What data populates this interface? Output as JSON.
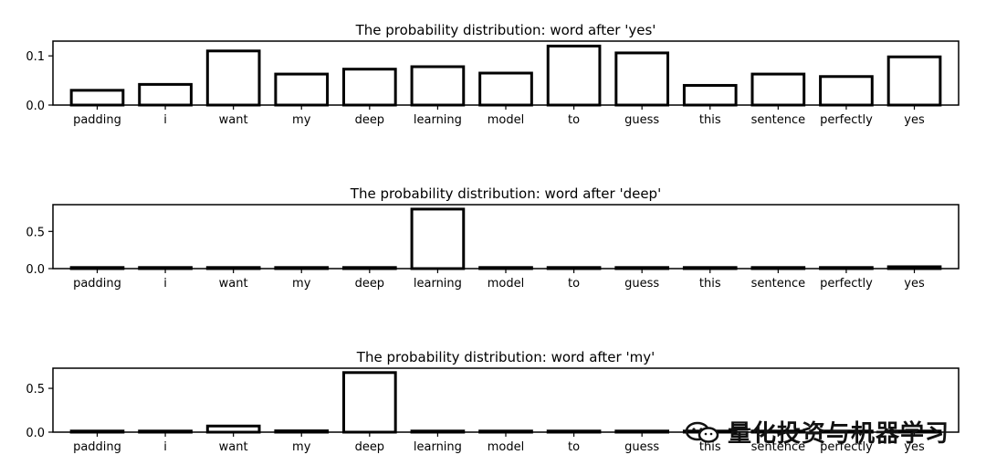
{
  "chart_data": [
    {
      "type": "bar",
      "title": "The probability distribution: word after 'yes'",
      "categories": [
        "padding",
        "i",
        "want",
        "my",
        "deep",
        "learning",
        "model",
        "to",
        "guess",
        "this",
        "sentence",
        "perfectly",
        "yes"
      ],
      "values": [
        0.03,
        0.042,
        0.11,
        0.063,
        0.073,
        0.078,
        0.065,
        0.12,
        0.106,
        0.04,
        0.063,
        0.058,
        0.098
      ],
      "yticks": [
        "0.0",
        "0.1"
      ],
      "ylim": [
        0,
        0.13
      ],
      "xlabel": "",
      "ylabel": ""
    },
    {
      "type": "bar",
      "title": "The probability distribution: word after 'deep'",
      "categories": [
        "padding",
        "i",
        "want",
        "my",
        "deep",
        "learning",
        "model",
        "to",
        "guess",
        "this",
        "sentence",
        "perfectly",
        "yes"
      ],
      "values": [
        0.0,
        0.006,
        0.005,
        0.012,
        0.0,
        0.8,
        0.005,
        0.012,
        0.006,
        0.012,
        0.0,
        0.0,
        0.025
      ],
      "yticks": [
        "0.0",
        "0.5"
      ],
      "ylim": [
        0,
        0.86
      ],
      "xlabel": "",
      "ylabel": ""
    },
    {
      "type": "bar",
      "title": "The probability distribution: word after 'my'",
      "categories": [
        "padding",
        "i",
        "want",
        "my",
        "deep",
        "learning",
        "model",
        "to",
        "guess",
        "this",
        "sentence",
        "perfectly",
        "yes"
      ],
      "values": [
        0.006,
        0.006,
        0.07,
        0.015,
        0.68,
        0.0,
        0.0,
        0.0,
        0.0,
        0.006,
        0.0,
        0.0,
        0.0
      ],
      "yticks": [
        "0.0",
        "0.5"
      ],
      "ylim": [
        0,
        0.73
      ],
      "xlabel": "",
      "ylabel": ""
    }
  ],
  "watermark": {
    "text": "量化投资与机器学习",
    "icon": "wechat-icon"
  }
}
